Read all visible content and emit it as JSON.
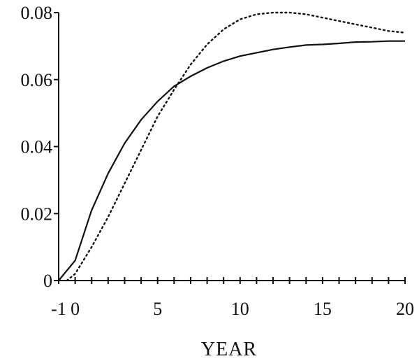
{
  "chart_data": {
    "type": "line",
    "title": "",
    "xlabel": "YEAR",
    "ylabel": "",
    "xlim": [
      -1,
      20
    ],
    "ylim": [
      0,
      0.08
    ],
    "x_tick_labels": [
      {
        "value": -1,
        "label": "-1"
      },
      {
        "value": 0,
        "label": "0"
      },
      {
        "value": 5,
        "label": "5"
      },
      {
        "value": 10,
        "label": "10"
      },
      {
        "value": 15,
        "label": "15"
      },
      {
        "value": 20,
        "label": "20"
      }
    ],
    "x_minor_ticks": [
      -1,
      0,
      1,
      2,
      3,
      4,
      5,
      6,
      7,
      8,
      9,
      10,
      11,
      12,
      13,
      14,
      15,
      16,
      17,
      18,
      19,
      20
    ],
    "y_tick_labels": [
      {
        "value": 0,
        "label": "0"
      },
      {
        "value": 0.02,
        "label": "0.02"
      },
      {
        "value": 0.04,
        "label": "0.04"
      },
      {
        "value": 0.06,
        "label": "0.06"
      },
      {
        "value": 0.08,
        "label": "0.08"
      }
    ],
    "grid": false,
    "legend": "none",
    "series": [
      {
        "style": "solid",
        "x": [
          -1,
          0,
          1,
          2,
          3,
          4,
          5,
          6,
          7,
          8,
          9,
          10,
          11,
          12,
          13,
          14,
          15,
          16,
          17,
          18,
          19,
          20
        ],
        "y": [
          0,
          0.006,
          0.021,
          0.032,
          0.041,
          0.048,
          0.0535,
          0.058,
          0.061,
          0.0635,
          0.0655,
          0.067,
          0.068,
          0.069,
          0.0697,
          0.0703,
          0.0705,
          0.0708,
          0.0712,
          0.0713,
          0.0715,
          0.0715
        ]
      },
      {
        "style": "dotted",
        "x": [
          -0.5,
          0,
          1,
          2,
          3,
          4,
          5,
          6,
          7,
          8,
          9,
          10,
          11,
          12,
          13,
          14,
          15,
          16,
          17,
          18,
          19,
          20
        ],
        "y": [
          0,
          0.002,
          0.01,
          0.019,
          0.029,
          0.039,
          0.049,
          0.057,
          0.0645,
          0.0705,
          0.075,
          0.078,
          0.0795,
          0.08,
          0.08,
          0.0795,
          0.0785,
          0.0775,
          0.0765,
          0.0755,
          0.0745,
          0.074
        ]
      }
    ]
  }
}
